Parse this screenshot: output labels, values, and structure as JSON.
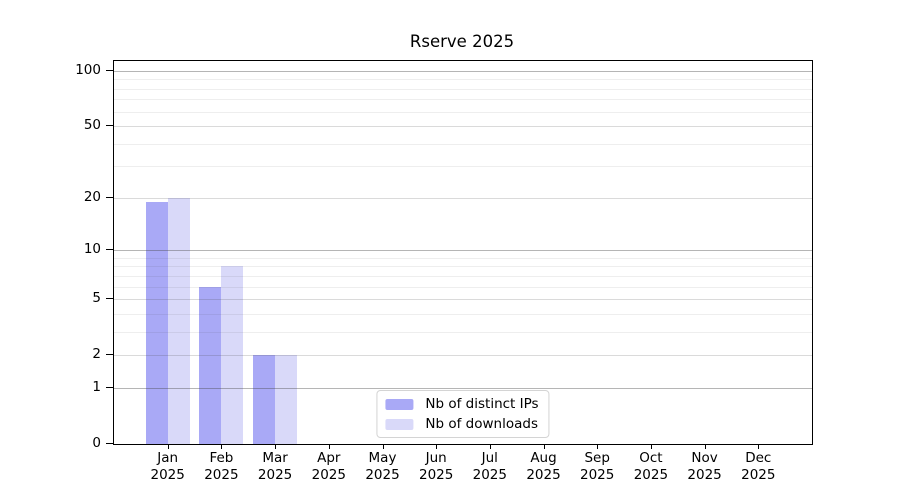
{
  "chart_data": {
    "type": "bar",
    "title": "Rserve 2025",
    "categories": [
      "Jan",
      "Feb",
      "Mar",
      "Apr",
      "May",
      "Jun",
      "Jul",
      "Aug",
      "Sep",
      "Oct",
      "Nov",
      "Dec"
    ],
    "x_year": "2025",
    "series": [
      {
        "name": "Nb of distinct IPs",
        "color": "#a9a9f6",
        "values": [
          19,
          6,
          2,
          0,
          0,
          0,
          0,
          0,
          0,
          0,
          0,
          0
        ]
      },
      {
        "name": "Nb of downloads",
        "color": "#d9d9f9",
        "values": [
          20,
          8,
          2,
          0,
          0,
          0,
          0,
          0,
          0,
          0,
          0,
          0
        ]
      }
    ],
    "y_axis": {
      "scale": "log10(1+x)",
      "tick_values": [
        0,
        1,
        2,
        5,
        10,
        20,
        50,
        100
      ],
      "tick_labels": [
        "0",
        "1",
        "2",
        "5",
        "10",
        "20",
        "50",
        "100"
      ],
      "max_value": 113,
      "decade_gridlines": [
        1,
        10,
        100
      ],
      "sub_gridlines": [
        2,
        5,
        20,
        50
      ],
      "minor_gridlines": [
        3,
        4,
        6,
        7,
        8,
        9,
        30,
        40,
        60,
        70,
        80,
        90
      ]
    },
    "legend": {
      "position": "lower-center"
    },
    "grid": true,
    "colors": {
      "axis": "#000000",
      "background": "#ffffff",
      "grid_decade": "#b4b4b4",
      "grid_sub": "#d8d8d8",
      "grid_minor": "#efefef"
    }
  }
}
